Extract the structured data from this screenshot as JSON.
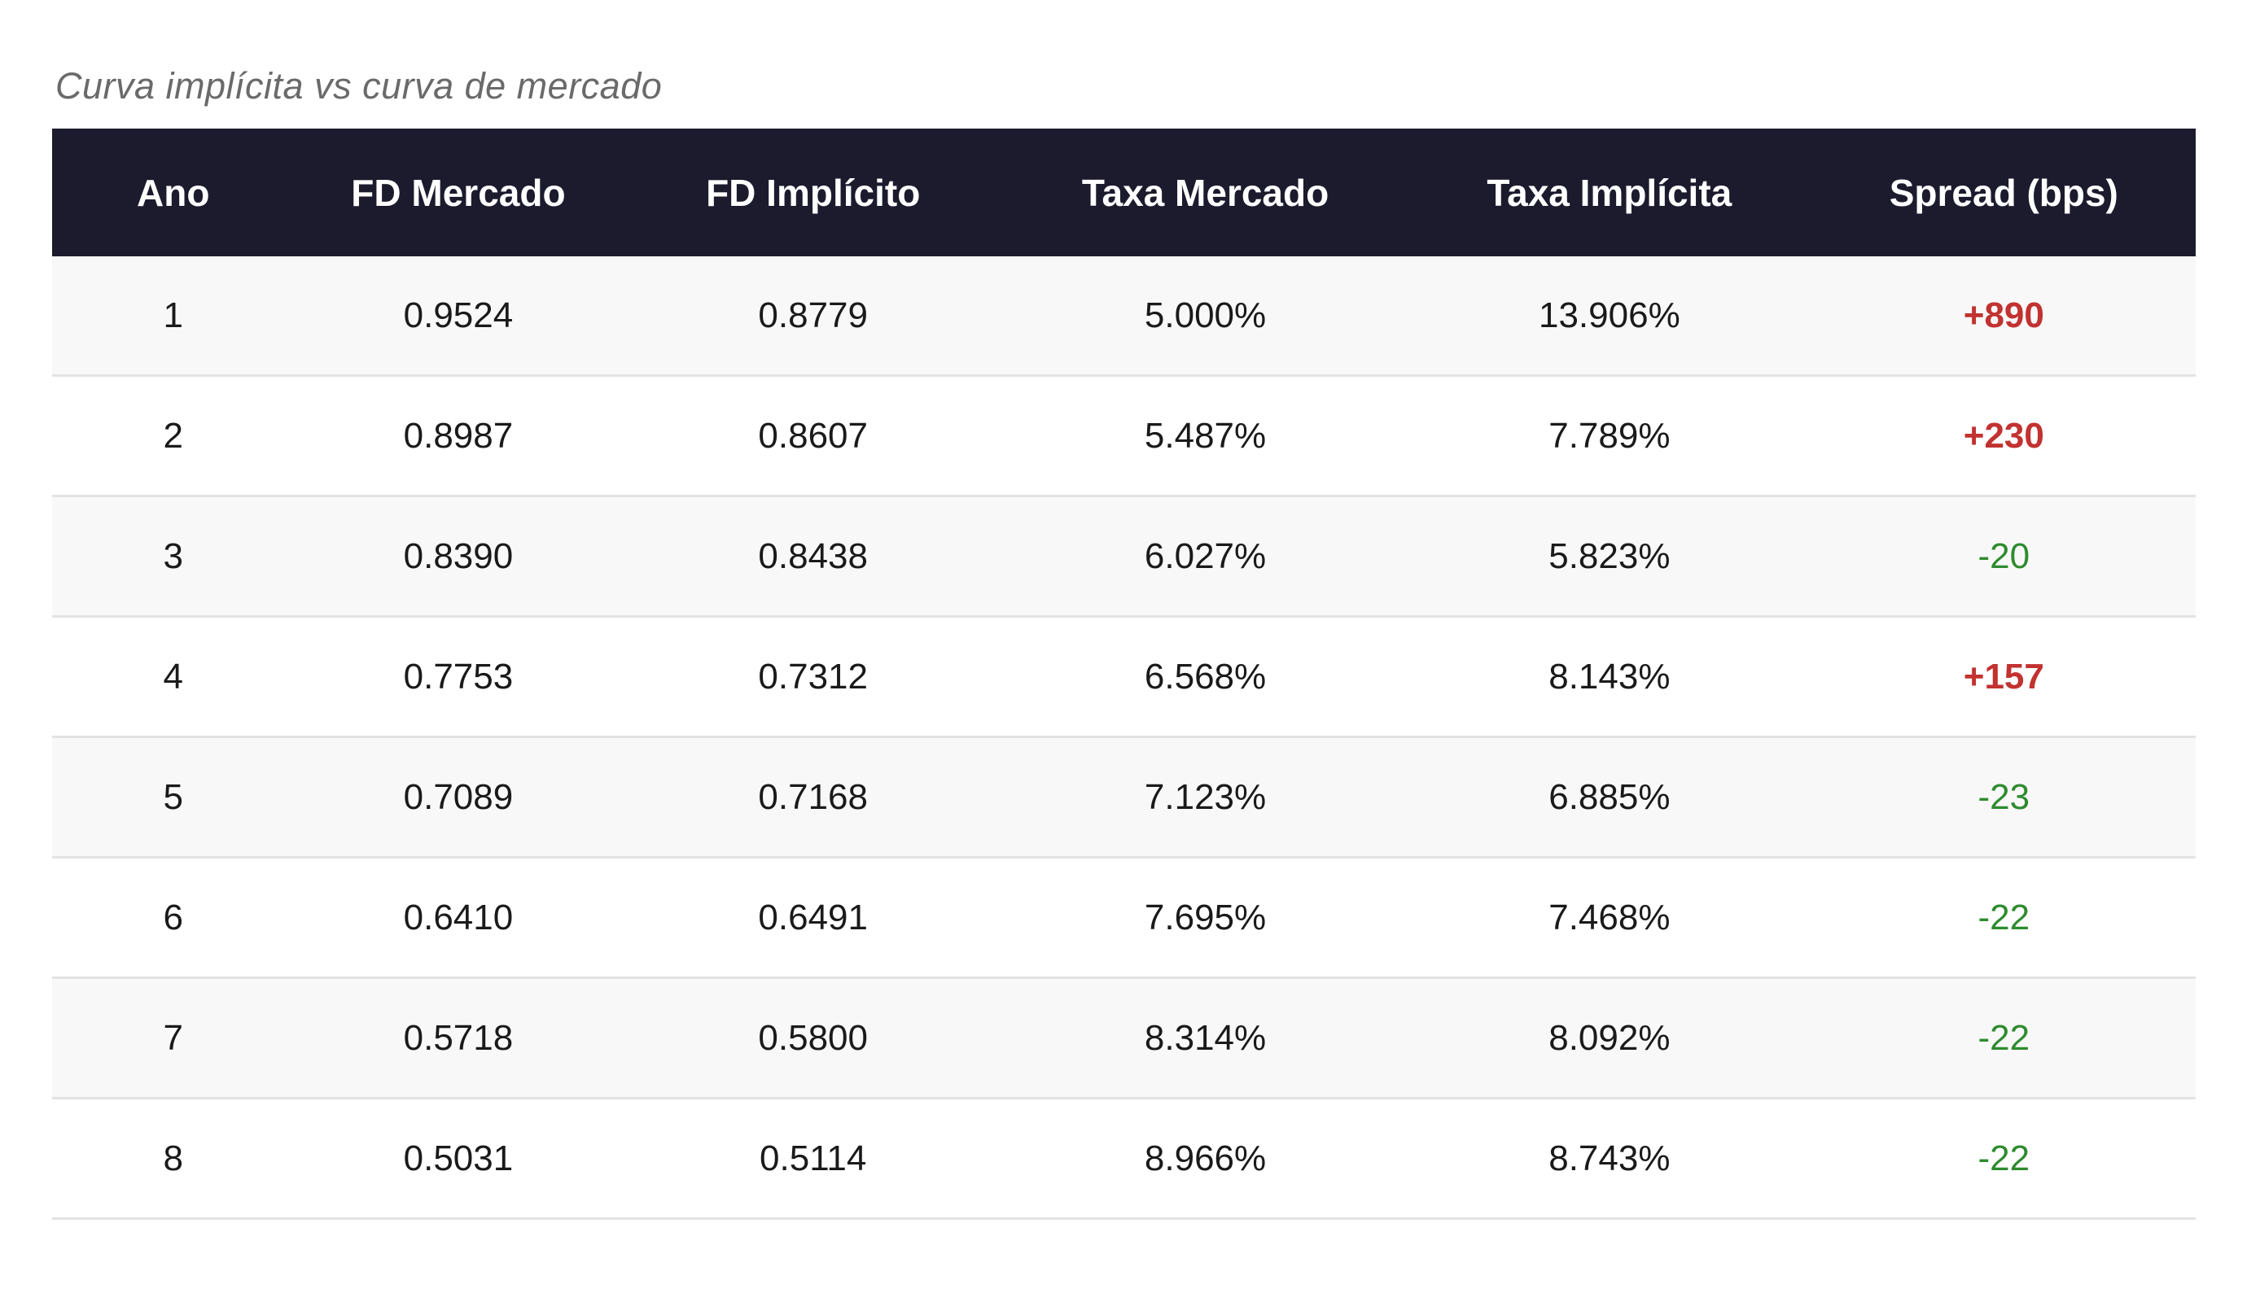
{
  "title": "Curva implícita vs curva de mercado",
  "colors": {
    "header_bg": "#1c1b2e",
    "row_alt_bg": "#f8f8f8",
    "border": "#e3e3e3",
    "title": "#6a6a6a",
    "positive_spread": "#c13230",
    "negative_spread": "#2e8b2e"
  },
  "table": {
    "columns": [
      "Ano",
      "FD Mercado",
      "FD Implícito",
      "Taxa Mercado",
      "Taxa Implícita",
      "Spread (bps)"
    ],
    "rows": [
      {
        "ano": "1",
        "fd_mercado": "0.9524",
        "fd_implicito": "0.8779",
        "taxa_mercado": "5.000%",
        "taxa_implicita": "13.906%",
        "spread": "+890",
        "spread_type": "positive"
      },
      {
        "ano": "2",
        "fd_mercado": "0.8987",
        "fd_implicito": "0.8607",
        "taxa_mercado": "5.487%",
        "taxa_implicita": "7.789%",
        "spread": "+230",
        "spread_type": "positive"
      },
      {
        "ano": "3",
        "fd_mercado": "0.8390",
        "fd_implicito": "0.8438",
        "taxa_mercado": "6.027%",
        "taxa_implicita": "5.823%",
        "spread": "-20",
        "spread_type": "negative"
      },
      {
        "ano": "4",
        "fd_mercado": "0.7753",
        "fd_implicito": "0.7312",
        "taxa_mercado": "6.568%",
        "taxa_implicita": "8.143%",
        "spread": "+157",
        "spread_type": "positive"
      },
      {
        "ano": "5",
        "fd_mercado": "0.7089",
        "fd_implicito": "0.7168",
        "taxa_mercado": "7.123%",
        "taxa_implicita": "6.885%",
        "spread": "-23",
        "spread_type": "negative"
      },
      {
        "ano": "6",
        "fd_mercado": "0.6410",
        "fd_implicito": "0.6491",
        "taxa_mercado": "7.695%",
        "taxa_implicita": "7.468%",
        "spread": "-22",
        "spread_type": "negative"
      },
      {
        "ano": "7",
        "fd_mercado": "0.5718",
        "fd_implicito": "0.5800",
        "taxa_mercado": "8.314%",
        "taxa_implicita": "8.092%",
        "spread": "-22",
        "spread_type": "negative"
      },
      {
        "ano": "8",
        "fd_mercado": "0.5031",
        "fd_implicito": "0.5114",
        "taxa_mercado": "8.966%",
        "taxa_implicita": "8.743%",
        "spread": "-22",
        "spread_type": "negative"
      }
    ]
  },
  "chart_data": {
    "type": "table",
    "title": "Curva implícita vs curva de mercado",
    "columns": [
      "Ano",
      "FD Mercado",
      "FD Implícito",
      "Taxa Mercado",
      "Taxa Implícita",
      "Spread (bps)"
    ],
    "rows": [
      [
        1,
        0.9524,
        0.8779,
        "5.000%",
        "13.906%",
        890
      ],
      [
        2,
        0.8987,
        0.8607,
        "5.487%",
        "7.789%",
        230
      ],
      [
        3,
        0.839,
        0.8438,
        "6.027%",
        "5.823%",
        -20
      ],
      [
        4,
        0.7753,
        0.7312,
        "6.568%",
        "8.143%",
        157
      ],
      [
        5,
        0.7089,
        0.7168,
        "7.123%",
        "6.885%",
        -23
      ],
      [
        6,
        0.641,
        0.6491,
        "7.695%",
        "7.468%",
        -22
      ],
      [
        7,
        0.5718,
        0.58,
        "8.314%",
        "8.092%",
        -22
      ],
      [
        8,
        0.5031,
        0.5114,
        "8.966%",
        "8.743%",
        -22
      ]
    ]
  }
}
